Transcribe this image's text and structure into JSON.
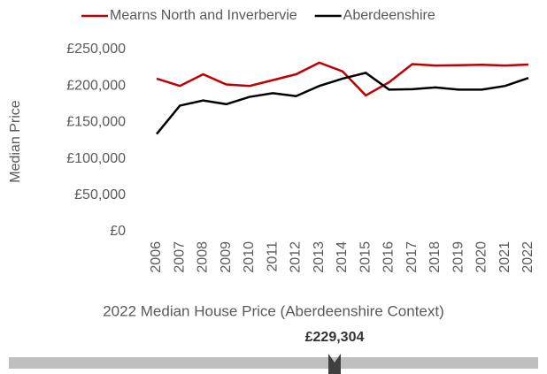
{
  "chart_data": {
    "type": "line",
    "y_label": "Median Price",
    "categories": [
      "2006",
      "2007",
      "2008",
      "2009",
      "2010",
      "2011",
      "2012",
      "2013",
      "2014",
      "2015",
      "2016",
      "2017",
      "2018",
      "2019",
      "2020",
      "2021",
      "2022"
    ],
    "series": [
      {
        "name": "Mearns North and Inverbervie",
        "color": "#c00000",
        "values": [
          210000,
          200000,
          216000,
          202000,
          200000,
          208000,
          216000,
          232000,
          220000,
          187000,
          205000,
          230000,
          228000,
          228500,
          229000,
          228000,
          229304
        ]
      },
      {
        "name": "Aberdeenshire",
        "color": "#000000",
        "values": [
          134000,
          173000,
          180000,
          175000,
          185000,
          190000,
          186000,
          200000,
          210000,
          218000,
          195000,
          195500,
          198000,
          195000,
          195000,
          200000,
          211000
        ]
      }
    ],
    "ylim": [
      0,
      250000
    ],
    "yticks": [
      {
        "value": 0,
        "label": "£0"
      },
      {
        "value": 50000,
        "label": "£50,000"
      },
      {
        "value": 100000,
        "label": "£100,000"
      },
      {
        "value": 150000,
        "label": "£150,000"
      },
      {
        "value": 200000,
        "label": "£200,000"
      },
      {
        "value": 250000,
        "label": "£250,000"
      }
    ],
    "legend": "top",
    "grid": false
  },
  "highlight": {
    "title": "2022 Median House Price (Aberdeenshire Context)",
    "label": "£229,304"
  }
}
